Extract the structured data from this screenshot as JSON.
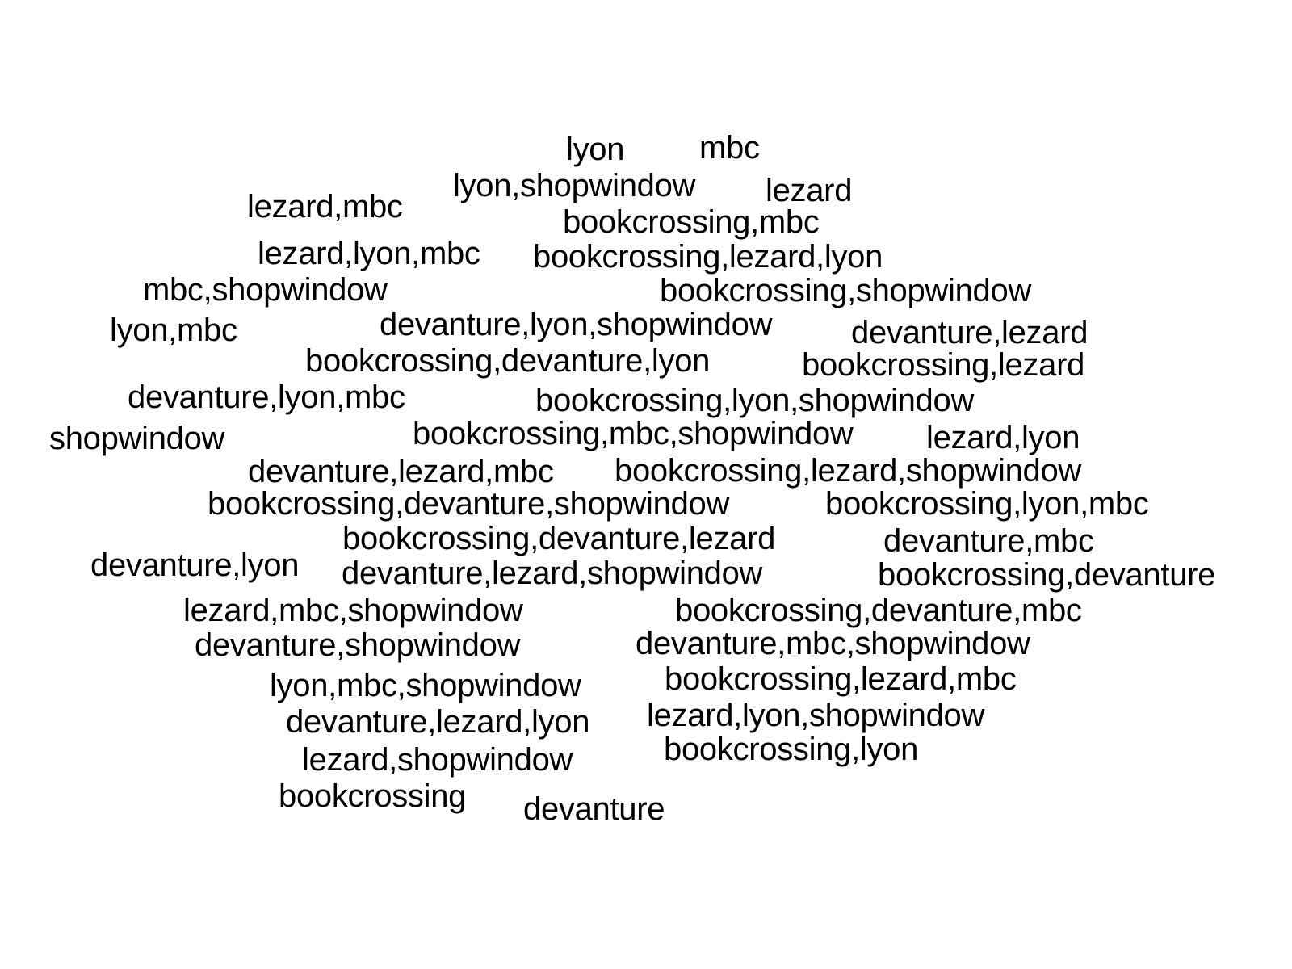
{
  "text_color": "#000000",
  "background_color": "#ffffff",
  "words": [
    "lyon",
    "mbc",
    "lyon,shopwindow",
    "lezard",
    "lezard,mbc",
    "bookcrossing,mbc",
    "lezard,lyon,mbc",
    "bookcrossing,lezard,lyon",
    "mbc,shopwindow",
    "bookcrossing,shopwindow",
    "lyon,mbc",
    "devanture,lyon,shopwindow",
    "devanture,lezard",
    "bookcrossing,devanture,lyon",
    "bookcrossing,lezard",
    "devanture,lyon,mbc",
    "bookcrossing,lyon,shopwindow",
    "shopwindow",
    "bookcrossing,mbc,shopwindow",
    "lezard,lyon",
    "devanture,lezard,mbc",
    "bookcrossing,lezard,shopwindow",
    "bookcrossing,devanture,shopwindow",
    "bookcrossing,lyon,mbc",
    "bookcrossing,devanture,lezard",
    "devanture,mbc",
    "devanture,lyon",
    "devanture,lezard,shopwindow",
    "bookcrossing,devanture",
    "lezard,mbc,shopwindow",
    "bookcrossing,devanture,mbc",
    "devanture,shopwindow",
    "devanture,mbc,shopwindow",
    "lyon,mbc,shopwindow",
    "bookcrossing,lezard,mbc",
    "devanture,lezard,lyon",
    "lezard,lyon,shopwindow",
    "lezard,shopwindow",
    "bookcrossing,lyon",
    "bookcrossing",
    "devanture"
  ]
}
